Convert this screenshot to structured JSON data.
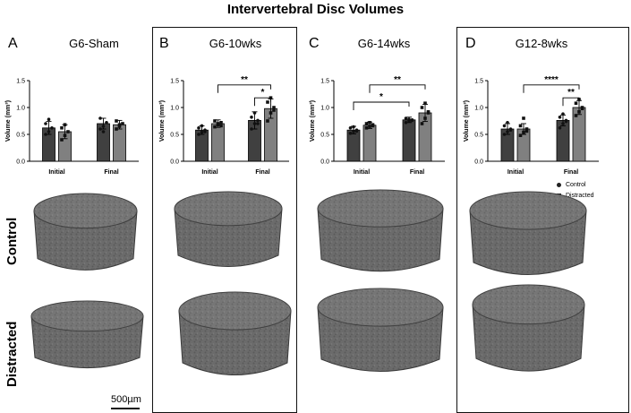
{
  "title": "Intervertebral Disc Volumes",
  "colors": {
    "control": "#404040",
    "distracted": "#808080",
    "tissue": "#6b6b6b",
    "tissue_dark": "#3a3a3a"
  },
  "panels": [
    {
      "letter": "A",
      "title": "G6-Sham"
    },
    {
      "letter": "B",
      "title": "G6-10wks"
    },
    {
      "letter": "C",
      "title": "G6-14wks"
    },
    {
      "letter": "D",
      "title": "G12-8wks"
    }
  ],
  "row_labels": {
    "control": "Control",
    "distracted": "Distracted"
  },
  "scale_bar": "500µm",
  "legend": {
    "control": "Control",
    "distracted": "Distracted"
  },
  "chart_data": [
    {
      "type": "bar",
      "panel": "A",
      "title": "G6-Sham",
      "categories": [
        "Initial",
        "Final"
      ],
      "ylabel": "Volume (mm³)",
      "ylim": [
        0,
        1.5
      ],
      "yticks": [
        "0.0",
        "0.5",
        "1.0",
        "1.5"
      ],
      "series": [
        {
          "name": "Control",
          "values": [
            0.62,
            0.7
          ],
          "errors": [
            0.12,
            0.1
          ],
          "points": [
            [
              0.5,
              0.55,
              0.62,
              0.7,
              0.78
            ],
            [
              0.6,
              0.65,
              0.72,
              0.8,
              0.55
            ]
          ]
        },
        {
          "name": "Distracted",
          "values": [
            0.55,
            0.68
          ],
          "errors": [
            0.13,
            0.08
          ],
          "points": [
            [
              0.4,
              0.48,
              0.55,
              0.62,
              0.68
            ],
            [
              0.6,
              0.65,
              0.7,
              0.75,
              0.68
            ]
          ]
        }
      ],
      "significance": []
    },
    {
      "type": "bar",
      "panel": "B",
      "title": "G6-10wks",
      "categories": [
        "Initial",
        "Final"
      ],
      "ylabel": "Volume (mm³)",
      "ylim": [
        0,
        1.5
      ],
      "yticks": [
        "0.0",
        "0.5",
        "1.0",
        "1.5"
      ],
      "series": [
        {
          "name": "Control",
          "values": [
            0.58,
            0.76
          ],
          "errors": [
            0.08,
            0.16
          ],
          "points": [
            [
              0.5,
              0.54,
              0.58,
              0.62,
              0.66,
              0.55
            ],
            [
              0.6,
              0.7,
              0.76,
              0.82,
              0.9,
              0.7
            ]
          ]
        },
        {
          "name": "Distracted",
          "values": [
            0.7,
            0.98
          ],
          "errors": [
            0.07,
            0.18
          ],
          "points": [
            [
              0.64,
              0.68,
              0.72,
              0.75,
              0.7,
              0.66
            ],
            [
              0.75,
              0.9,
              1.0,
              1.1,
              1.18,
              0.95
            ]
          ]
        }
      ],
      "significance": [
        {
          "label": "**",
          "from": "Initial-Distracted",
          "to": "Final-Distracted",
          "level": 1.42
        },
        {
          "label": "*",
          "from": "Final-Control",
          "to": "Final-Distracted",
          "level": 1.18
        }
      ]
    },
    {
      "type": "bar",
      "panel": "C",
      "title": "G6-14wks",
      "categories": [
        "Initial",
        "Final"
      ],
      "ylabel": "Volume (mm³)",
      "ylim": [
        0,
        1.5
      ],
      "yticks": [
        "0.0",
        "0.5",
        "1.0",
        "1.5"
      ],
      "series": [
        {
          "name": "Control",
          "values": [
            0.58,
            0.77
          ],
          "errors": [
            0.07,
            0.05
          ],
          "points": [
            [
              0.52,
              0.55,
              0.58,
              0.62,
              0.64,
              0.56
            ],
            [
              0.72,
              0.75,
              0.77,
              0.8,
              0.78,
              0.76
            ]
          ]
        },
        {
          "name": "Distracted",
          "values": [
            0.67,
            0.9
          ],
          "errors": [
            0.06,
            0.16
          ],
          "points": [
            [
              0.62,
              0.65,
              0.68,
              0.7,
              0.72,
              0.66
            ],
            [
              0.7,
              0.8,
              0.9,
              1.0,
              1.08,
              0.92
            ]
          ]
        }
      ],
      "significance": [
        {
          "label": "**",
          "from": "Initial-Distracted",
          "to": "Final-Distracted",
          "level": 1.42
        },
        {
          "label": "*",
          "from": "Initial-Control",
          "to": "Final-Control",
          "level": 1.1
        }
      ]
    },
    {
      "type": "bar",
      "panel": "D",
      "title": "G12-8wks",
      "categories": [
        "Initial",
        "Final"
      ],
      "ylabel": "Volume (mm³)",
      "ylim": [
        0,
        1.5
      ],
      "yticks": [
        "0.0",
        "0.5",
        "1.0",
        "1.5"
      ],
      "series": [
        {
          "name": "Control",
          "values": [
            0.6,
            0.76
          ],
          "errors": [
            0.1,
            0.1
          ],
          "points": [
            [
              0.5,
              0.55,
              0.6,
              0.66,
              0.72,
              0.58
            ],
            [
              0.62,
              0.7,
              0.76,
              0.82,
              0.88,
              0.74
            ]
          ]
        },
        {
          "name": "Distracted",
          "values": [
            0.6,
            1.0
          ],
          "errors": [
            0.1,
            0.13
          ],
          "points": [
            [
              0.48,
              0.54,
              0.6,
              0.66,
              0.8,
              0.56
            ],
            [
              0.85,
              0.92,
              1.0,
              1.08,
              1.15,
              0.98
            ]
          ]
        }
      ],
      "significance": [
        {
          "label": "****",
          "from": "Initial-Distracted",
          "to": "Final-Distracted",
          "level": 1.42
        },
        {
          "label": "**",
          "from": "Final-Control",
          "to": "Final-Distracted",
          "level": 1.18
        }
      ]
    }
  ]
}
